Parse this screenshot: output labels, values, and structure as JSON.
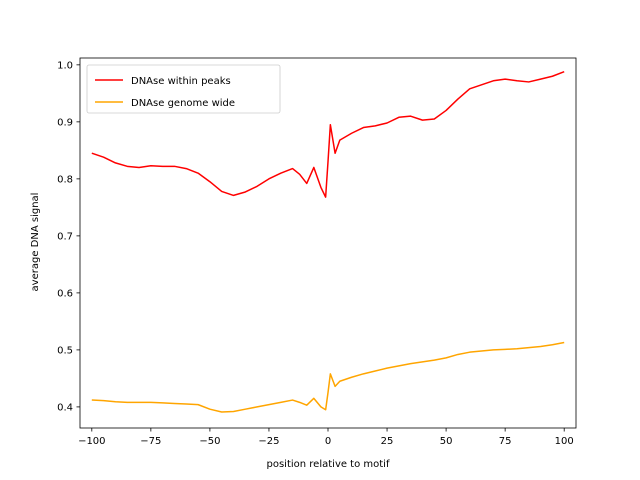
{
  "chart_data": {
    "type": "line",
    "title": "",
    "xlabel": "position relative to motif",
    "ylabel": "average DNA signal",
    "xlim": [
      -105,
      105
    ],
    "ylim": [
      0.363,
      1.012
    ],
    "xticks": [
      -100,
      -75,
      -50,
      -25,
      0,
      25,
      50,
      75,
      100
    ],
    "xtick_labels": [
      "−100",
      "−75",
      "−50",
      "−25",
      "0",
      "25",
      "50",
      "75",
      "100"
    ],
    "yticks": [
      0.4,
      0.5,
      0.6,
      0.7,
      0.8,
      0.9,
      1.0
    ],
    "ytick_labels": [
      "0.4",
      "0.5",
      "0.6",
      "0.7",
      "0.8",
      "0.9",
      "1.0"
    ],
    "grid": false,
    "legend_position": "top-left",
    "series": [
      {
        "name": "DNAse within peaks",
        "color": "#ff0000",
        "x": [
          -100,
          -95,
          -90,
          -85,
          -80,
          -75,
          -70,
          -65,
          -60,
          -55,
          -50,
          -45,
          -40,
          -35,
          -30,
          -25,
          -20,
          -15,
          -12,
          -9,
          -6,
          -3,
          -1,
          0,
          1,
          3,
          5,
          10,
          15,
          20,
          25,
          30,
          35,
          40,
          45,
          50,
          55,
          60,
          65,
          70,
          75,
          80,
          85,
          90,
          95,
          100
        ],
        "y": [
          0.845,
          0.838,
          0.828,
          0.822,
          0.82,
          0.823,
          0.822,
          0.822,
          0.818,
          0.81,
          0.795,
          0.778,
          0.771,
          0.777,
          0.787,
          0.8,
          0.81,
          0.818,
          0.808,
          0.792,
          0.82,
          0.785,
          0.768,
          0.83,
          0.895,
          0.845,
          0.868,
          0.88,
          0.89,
          0.893,
          0.898,
          0.908,
          0.91,
          0.903,
          0.905,
          0.92,
          0.94,
          0.958,
          0.965,
          0.972,
          0.975,
          0.972,
          0.97,
          0.975,
          0.98,
          0.988
        ]
      },
      {
        "name": "DNAse genome wide",
        "color": "#ffa500",
        "x": [
          -100,
          -95,
          -90,
          -85,
          -80,
          -75,
          -70,
          -65,
          -60,
          -55,
          -50,
          -45,
          -40,
          -35,
          -30,
          -25,
          -20,
          -15,
          -12,
          -9,
          -6,
          -3,
          -1,
          0,
          1,
          3,
          5,
          10,
          15,
          20,
          25,
          30,
          35,
          40,
          45,
          50,
          55,
          60,
          65,
          70,
          75,
          80,
          85,
          90,
          95,
          100
        ],
        "y": [
          0.412,
          0.411,
          0.409,
          0.408,
          0.408,
          0.408,
          0.407,
          0.406,
          0.405,
          0.404,
          0.396,
          0.391,
          0.392,
          0.396,
          0.4,
          0.404,
          0.408,
          0.412,
          0.408,
          0.403,
          0.415,
          0.4,
          0.395,
          0.425,
          0.458,
          0.436,
          0.445,
          0.452,
          0.458,
          0.463,
          0.468,
          0.472,
          0.476,
          0.479,
          0.482,
          0.486,
          0.492,
          0.496,
          0.498,
          0.5,
          0.501,
          0.502,
          0.504,
          0.506,
          0.509,
          0.513
        ]
      }
    ]
  }
}
